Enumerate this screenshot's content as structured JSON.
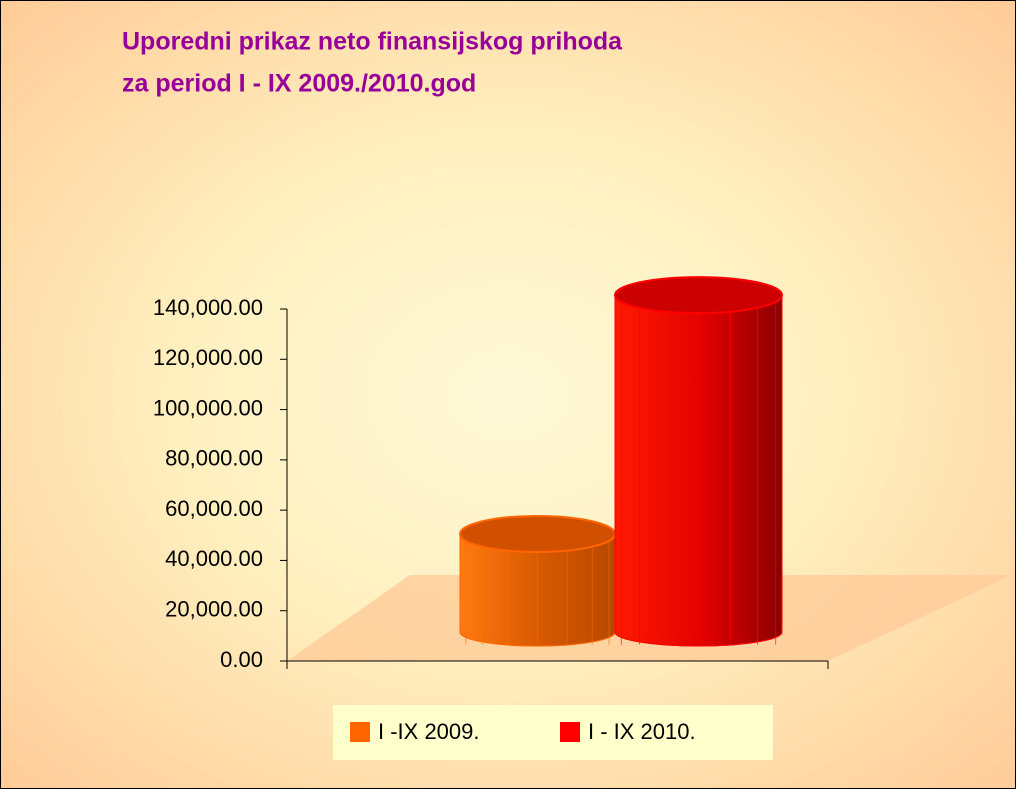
{
  "chart_data": {
    "type": "bar",
    "title": [
      "Uporedni prikaz neto finansijskog prihoda",
      "za period I - IX 2009./2010.god"
    ],
    "series": [
      {
        "name": "I -IX 2009.",
        "color": "#ff6600",
        "values": [
          39000
        ]
      },
      {
        "name": "I - IX 2010.",
        "color": "#ff0000",
        "values": [
          134000
        ]
      }
    ],
    "ylim": [
      0,
      140000
    ],
    "yticks": [
      {
        "value": 0,
        "label": "0.00"
      },
      {
        "value": 20000,
        "label": "20,000.00"
      },
      {
        "value": 40000,
        "label": "40,000.00"
      },
      {
        "value": 60000,
        "label": "60,000.00"
      },
      {
        "value": 80000,
        "label": "80,000.00"
      },
      {
        "value": 100000,
        "label": "100,000.00"
      },
      {
        "value": 120000,
        "label": "120,000.00"
      },
      {
        "value": 140000,
        "label": "140,000.00"
      }
    ],
    "legend": "bottom"
  }
}
